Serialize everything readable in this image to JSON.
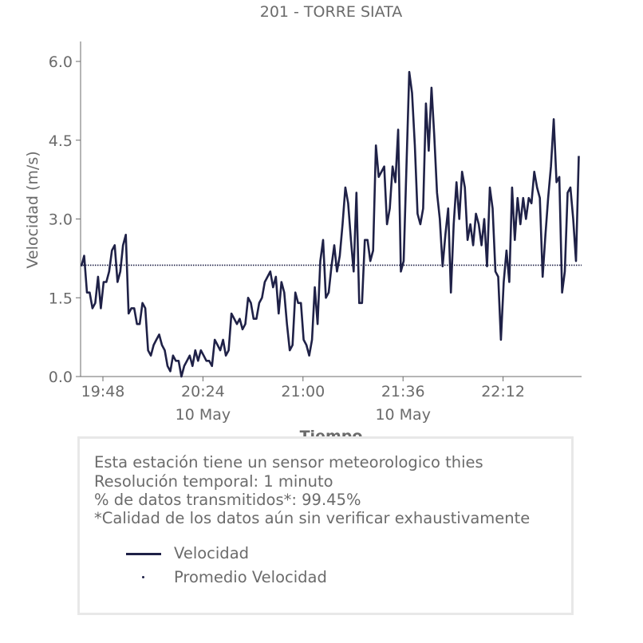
{
  "chart_data": {
    "type": "line",
    "title": "201 - TORRE SIATA",
    "xlabel": "Tiempo",
    "ylabel": "Velocidad (m/s)",
    "ylim": [
      0,
      6.3
    ],
    "y_ticks": [
      "0.0",
      "1.5",
      "3.0",
      "4.5",
      "6.0"
    ],
    "x_ticks": [
      {
        "label": "19:48",
        "date": ""
      },
      {
        "label": "20:24",
        "date": "10 May"
      },
      {
        "label": "21:00",
        "date": ""
      },
      {
        "label": "21:36",
        "date": "10 May"
      },
      {
        "label": "22:12",
        "date": ""
      }
    ],
    "x_start": "19:40",
    "x_interval_minutes": 1,
    "grid": false,
    "series": [
      {
        "name": "Velocidad",
        "style": "solid",
        "color": "#1f2147",
        "values": [
          2.1,
          2.3,
          1.6,
          1.6,
          1.3,
          1.4,
          1.9,
          1.3,
          1.8,
          1.8,
          2.0,
          2.4,
          2.5,
          1.8,
          2.0,
          2.5,
          2.7,
          1.2,
          1.3,
          1.3,
          1.0,
          1.0,
          1.4,
          1.3,
          0.5,
          0.4,
          0.6,
          0.7,
          0.8,
          0.6,
          0.5,
          0.2,
          0.1,
          0.4,
          0.3,
          0.3,
          0.0,
          0.2,
          0.3,
          0.4,
          0.2,
          0.5,
          0.3,
          0.5,
          0.4,
          0.3,
          0.3,
          0.2,
          0.7,
          0.6,
          0.5,
          0.7,
          0.4,
          0.5,
          1.2,
          1.1,
          1.0,
          1.1,
          0.9,
          1.0,
          1.5,
          1.4,
          1.1,
          1.1,
          1.4,
          1.5,
          1.8,
          1.9,
          2.0,
          1.7,
          1.9,
          1.2,
          1.8,
          1.6,
          1.0,
          0.5,
          0.6,
          1.6,
          1.4,
          1.4,
          0.7,
          0.6,
          0.4,
          0.7,
          1.7,
          1.0,
          2.2,
          2.6,
          1.5,
          1.6,
          2.1,
          2.5,
          2.0,
          2.3,
          2.9,
          3.6,
          3.3,
          2.6,
          2.0,
          3.5,
          1.4,
          1.4,
          2.6,
          2.6,
          2.2,
          2.4,
          4.4,
          3.8,
          3.9,
          4.0,
          2.9,
          3.2,
          4.0,
          3.7,
          4.7,
          2.0,
          2.2,
          4.0,
          5.8,
          5.4,
          4.4,
          3.1,
          2.9,
          3.2,
          5.2,
          4.3,
          5.5,
          4.6,
          3.5,
          3.0,
          2.1,
          2.7,
          3.2,
          1.6,
          2.9,
          3.7,
          3.0,
          3.9,
          3.6,
          2.6,
          2.9,
          2.5,
          3.1,
          2.9,
          2.5,
          3.0,
          2.1,
          3.6,
          3.2,
          2.0,
          1.9,
          0.7,
          1.8,
          2.4,
          1.8,
          3.6,
          2.6,
          3.4,
          2.9,
          3.4,
          3.0,
          3.4,
          3.3,
          3.9,
          3.6,
          3.4,
          1.9,
          2.7,
          3.4,
          4.0,
          4.9,
          3.7,
          3.8,
          1.6,
          2.0,
          3.5,
          3.6,
          3.0,
          2.2,
          4.2
        ]
      },
      {
        "name": "Promedio Velocidad",
        "style": "dotted",
        "color": "#1f2147",
        "values": [
          2.12
        ]
      }
    ]
  },
  "info": {
    "line1": "Esta estación tiene un sensor meteorologico thies",
    "line2": "Resolución temporal: 1 minuto",
    "line3": "% de datos transmitidos*: 99.45%",
    "line4": "*Calidad de los datos aún sin verificar exhaustivamente"
  },
  "legend": {
    "series_1": "Velocidad",
    "series_2": "Promedio Velocidad"
  },
  "colors": {
    "series": "#1f2147",
    "text": "#6b6b6b",
    "box_border": "#e8e8e8"
  }
}
